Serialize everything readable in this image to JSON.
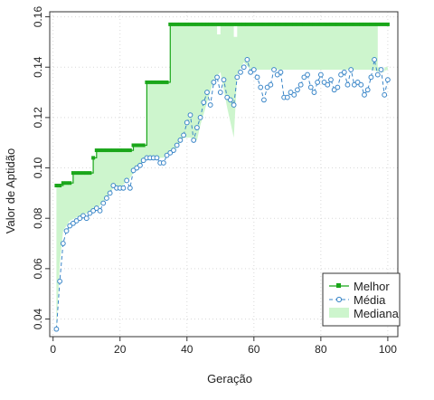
{
  "chart_data": {
    "type": "line",
    "title": "",
    "xlabel": "Geração",
    "ylabel": "Valor de Aptidão",
    "xlim": [
      -1,
      103
    ],
    "ylim": [
      0.033,
      0.162
    ],
    "x_ticks": [
      0,
      20,
      40,
      60,
      80,
      100
    ],
    "y_ticks": [
      0.04,
      0.06,
      0.08,
      0.1,
      0.12,
      0.14,
      0.16
    ],
    "y_tick_labels": [
      "0.04",
      "0.06",
      "0.08",
      "0.10",
      "0.12",
      "0.14",
      "0.16"
    ],
    "grid": true,
    "legend_position": "bottom-right",
    "colors": {
      "best": "#1aa61a",
      "mean": "#3a86c8",
      "median": "#cdf5cd"
    },
    "best_steps": [
      [
        1,
        0.093
      ],
      [
        3,
        0.094
      ],
      [
        6,
        0.098
      ],
      [
        12,
        0.104
      ],
      [
        13,
        0.107
      ],
      [
        24,
        0.109
      ],
      [
        28,
        0.134
      ],
      [
        35,
        0.157
      ],
      [
        100,
        0.157
      ]
    ],
    "mean_series": [
      [
        1,
        0.036
      ],
      [
        2,
        0.055
      ],
      [
        3,
        0.07
      ],
      [
        4,
        0.075
      ],
      [
        5,
        0.077
      ],
      [
        6,
        0.078
      ],
      [
        7,
        0.079
      ],
      [
        8,
        0.08
      ],
      [
        9,
        0.081
      ],
      [
        10,
        0.08
      ],
      [
        11,
        0.082
      ],
      [
        12,
        0.083
      ],
      [
        13,
        0.084
      ],
      [
        14,
        0.083
      ],
      [
        15,
        0.086
      ],
      [
        16,
        0.088
      ],
      [
        17,
        0.09
      ],
      [
        18,
        0.093
      ],
      [
        19,
        0.092
      ],
      [
        20,
        0.092
      ],
      [
        21,
        0.092
      ],
      [
        22,
        0.095
      ],
      [
        23,
        0.092
      ],
      [
        24,
        0.099
      ],
      [
        25,
        0.1
      ],
      [
        26,
        0.101
      ],
      [
        27,
        0.103
      ],
      [
        28,
        0.104
      ],
      [
        29,
        0.104
      ],
      [
        30,
        0.104
      ],
      [
        31,
        0.104
      ],
      [
        32,
        0.102
      ],
      [
        33,
        0.102
      ],
      [
        34,
        0.105
      ],
      [
        35,
        0.106
      ],
      [
        36,
        0.107
      ],
      [
        37,
        0.109
      ],
      [
        38,
        0.111
      ],
      [
        39,
        0.113
      ],
      [
        40,
        0.118
      ],
      [
        41,
        0.121
      ],
      [
        42,
        0.111
      ],
      [
        43,
        0.116
      ],
      [
        44,
        0.12
      ],
      [
        45,
        0.126
      ],
      [
        46,
        0.13
      ],
      [
        47,
        0.125
      ],
      [
        48,
        0.134
      ],
      [
        49,
        0.136
      ],
      [
        50,
        0.13
      ],
      [
        51,
        0.135
      ],
      [
        52,
        0.128
      ],
      [
        53,
        0.127
      ],
      [
        54,
        0.125
      ],
      [
        55,
        0.136
      ],
      [
        56,
        0.138
      ],
      [
        57,
        0.14
      ],
      [
        58,
        0.143
      ],
      [
        59,
        0.138
      ],
      [
        60,
        0.139
      ],
      [
        61,
        0.136
      ],
      [
        62,
        0.132
      ],
      [
        63,
        0.127
      ],
      [
        64,
        0.132
      ],
      [
        65,
        0.133
      ],
      [
        66,
        0.139
      ],
      [
        67,
        0.137
      ],
      [
        68,
        0.138
      ],
      [
        69,
        0.128
      ],
      [
        70,
        0.128
      ],
      [
        71,
        0.13
      ],
      [
        72,
        0.129
      ],
      [
        73,
        0.131
      ],
      [
        74,
        0.133
      ],
      [
        75,
        0.136
      ],
      [
        76,
        0.137
      ],
      [
        77,
        0.132
      ],
      [
        78,
        0.13
      ],
      [
        79,
        0.134
      ],
      [
        80,
        0.137
      ],
      [
        81,
        0.134
      ],
      [
        82,
        0.133
      ],
      [
        83,
        0.135
      ],
      [
        84,
        0.131
      ],
      [
        85,
        0.132
      ],
      [
        86,
        0.137
      ],
      [
        87,
        0.138
      ],
      [
        88,
        0.133
      ],
      [
        89,
        0.139
      ],
      [
        90,
        0.133
      ],
      [
        91,
        0.134
      ],
      [
        92,
        0.133
      ],
      [
        93,
        0.129
      ],
      [
        94,
        0.131
      ],
      [
        95,
        0.136
      ],
      [
        96,
        0.143
      ],
      [
        97,
        0.137
      ],
      [
        98,
        0.139
      ],
      [
        99,
        0.129
      ],
      [
        100,
        0.135
      ]
    ],
    "median_band": {
      "upper": [
        [
          1,
          0.093
        ],
        [
          3,
          0.094
        ],
        [
          6,
          0.098
        ],
        [
          12,
          0.104
        ],
        [
          13,
          0.107
        ],
        [
          24,
          0.109
        ],
        [
          28,
          0.134
        ],
        [
          35,
          0.157
        ],
        [
          48,
          0.157
        ],
        [
          49,
          0.153
        ],
        [
          50,
          0.157
        ],
        [
          53,
          0.157
        ],
        [
          54,
          0.152
        ],
        [
          55,
          0.157
        ],
        [
          96,
          0.157
        ],
        [
          97,
          0.14
        ],
        [
          98,
          0.138
        ],
        [
          99,
          0.14
        ],
        [
          100,
          0.139
        ]
      ],
      "lower": [
        [
          1,
          0.036
        ],
        [
          2,
          0.062
        ],
        [
          3,
          0.075
        ],
        [
          5,
          0.079
        ],
        [
          8,
          0.081
        ],
        [
          10,
          0.082
        ],
        [
          12,
          0.083
        ],
        [
          14,
          0.085
        ],
        [
          16,
          0.088
        ],
        [
          18,
          0.092
        ],
        [
          20,
          0.092
        ],
        [
          23,
          0.096
        ],
        [
          25,
          0.1
        ],
        [
          28,
          0.104
        ],
        [
          31,
          0.104
        ],
        [
          33,
          0.104
        ],
        [
          35,
          0.106
        ],
        [
          37,
          0.108
        ],
        [
          39,
          0.112
        ],
        [
          41,
          0.112
        ],
        [
          43,
          0.111
        ],
        [
          44,
          0.117
        ],
        [
          46,
          0.126
        ],
        [
          48,
          0.135
        ],
        [
          50,
          0.138
        ],
        [
          52,
          0.124
        ],
        [
          54,
          0.112
        ],
        [
          55,
          0.137
        ],
        [
          57,
          0.142
        ],
        [
          59,
          0.139
        ],
        [
          61,
          0.139
        ],
        [
          63,
          0.139
        ],
        [
          66,
          0.139
        ],
        [
          70,
          0.139
        ],
        [
          75,
          0.139
        ],
        [
          80,
          0.139
        ],
        [
          85,
          0.139
        ],
        [
          90,
          0.139
        ],
        [
          95,
          0.139
        ],
        [
          98,
          0.138
        ],
        [
          100,
          0.139
        ]
      ]
    },
    "legend": [
      {
        "key": "best",
        "label": "Melhor"
      },
      {
        "key": "mean",
        "label": "Média"
      },
      {
        "key": "median",
        "label": "Mediana"
      }
    ]
  }
}
